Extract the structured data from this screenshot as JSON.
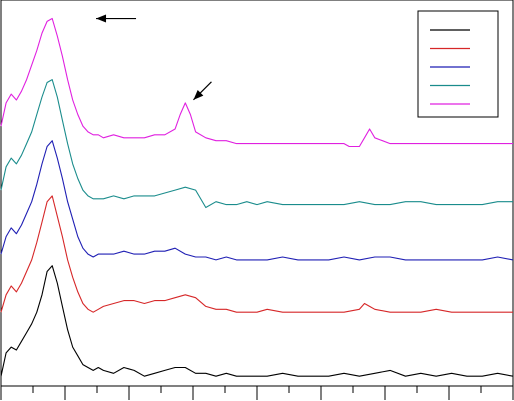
{
  "chart_data": {
    "type": "line",
    "title": "",
    "xlabel": "",
    "ylabel": "",
    "xlim": [
      0,
      100
    ],
    "ylim": [
      0,
      130
    ],
    "grid": false,
    "legend": {
      "placement": "top-right",
      "entries": [
        {
          "label": "",
          "color": "#000000"
        },
        {
          "label": "",
          "color": "#d62728"
        },
        {
          "label": "",
          "color": "#1f1fb4"
        },
        {
          "label": "",
          "color": "#1a8c8c"
        },
        {
          "label": "",
          "color": "#e020e0"
        }
      ]
    },
    "series": [
      {
        "color": "#000000",
        "x": [
          0,
          1,
          2,
          3,
          4,
          5,
          6,
          7,
          8,
          9,
          10,
          11,
          12,
          13,
          14,
          15,
          16,
          17,
          18,
          19,
          20,
          22,
          24,
          26,
          28,
          30,
          32,
          34,
          36,
          38,
          40,
          42,
          44,
          46,
          48,
          50,
          52,
          55,
          58,
          61,
          64,
          67,
          70,
          73,
          76,
          79,
          82,
          85,
          88,
          91,
          94,
          97,
          100
        ],
        "y": [
          2,
          10,
          12,
          11,
          14,
          17,
          20,
          24,
          30,
          38,
          40,
          34,
          26,
          18,
          12,
          9,
          6,
          5,
          4,
          5,
          4,
          3,
          5,
          4,
          2,
          3,
          4,
          5,
          5,
          3,
          3,
          2,
          3,
          2,
          2,
          2,
          2,
          3,
          2,
          2,
          2,
          3,
          2,
          3,
          4,
          2,
          3,
          2,
          3,
          2,
          2,
          3,
          2
        ]
      },
      {
        "color": "#d62728",
        "x": [
          0,
          1,
          2,
          3,
          4,
          5,
          6,
          7,
          8,
          9,
          10,
          11,
          12,
          13,
          14,
          15,
          16,
          17,
          18,
          19,
          20,
          22,
          24,
          26,
          28,
          30,
          32,
          34,
          36,
          38,
          40,
          42,
          44,
          46,
          48,
          50,
          52,
          55,
          58,
          61,
          64,
          67,
          70,
          71,
          72,
          73,
          76,
          79,
          82,
          85,
          88,
          91,
          94,
          97,
          100
        ],
        "y": [
          24,
          30,
          33,
          31,
          34,
          38,
          42,
          48,
          55,
          62,
          64,
          57,
          50,
          42,
          36,
          31,
          27,
          25,
          24,
          25,
          26,
          27,
          28,
          28,
          27,
          28,
          28,
          29,
          30,
          29,
          26,
          25,
          25,
          24,
          24,
          24,
          25,
          24,
          24,
          24,
          24,
          24,
          25,
          27,
          26,
          25,
          24,
          24,
          24,
          25,
          24,
          24,
          24,
          24,
          24
        ]
      },
      {
        "color": "#1f1fb4",
        "x": [
          0,
          1,
          2,
          3,
          4,
          5,
          6,
          7,
          8,
          9,
          10,
          11,
          12,
          13,
          14,
          15,
          16,
          17,
          18,
          19,
          20,
          22,
          24,
          26,
          28,
          30,
          32,
          34,
          36,
          38,
          40,
          42,
          44,
          46,
          48,
          50,
          52,
          55,
          58,
          61,
          64,
          67,
          70,
          73,
          76,
          79,
          82,
          85,
          88,
          91,
          94,
          97,
          100
        ],
        "y": [
          44,
          50,
          53,
          51,
          54,
          58,
          62,
          68,
          75,
          81,
          83,
          77,
          70,
          62,
          56,
          50,
          46,
          44,
          43,
          44,
          44,
          44,
          45,
          44,
          44,
          45,
          45,
          46,
          44,
          43,
          43,
          42,
          43,
          42,
          42,
          42,
          42,
          43,
          42,
          42,
          42,
          43,
          42,
          43,
          43,
          42,
          42,
          42,
          42,
          42,
          42,
          43,
          42
        ]
      },
      {
        "color": "#1a8c8c",
        "x": [
          0,
          1,
          2,
          3,
          4,
          5,
          6,
          7,
          8,
          9,
          10,
          11,
          12,
          13,
          14,
          15,
          16,
          17,
          18,
          19,
          20,
          22,
          24,
          26,
          28,
          30,
          32,
          34,
          36,
          38,
          40,
          42,
          44,
          46,
          48,
          50,
          52,
          55,
          58,
          61,
          64,
          67,
          70,
          73,
          76,
          79,
          82,
          85,
          88,
          91,
          94,
          97,
          100
        ],
        "y": [
          66,
          74,
          77,
          75,
          78,
          82,
          86,
          92,
          98,
          103,
          104,
          98,
          90,
          82,
          75,
          70,
          66,
          64,
          63,
          63,
          63,
          64,
          63,
          64,
          64,
          64,
          65,
          66,
          67,
          66,
          60,
          62,
          61,
          61,
          62,
          61,
          62,
          61,
          61,
          61,
          61,
          61,
          62,
          61,
          61,
          62,
          62,
          61,
          61,
          61,
          61,
          62,
          62
        ]
      },
      {
        "color": "#e020e0",
        "x": [
          0,
          1,
          2,
          3,
          4,
          5,
          6,
          7,
          8,
          9,
          10,
          11,
          12,
          13,
          14,
          15,
          16,
          17,
          18,
          19,
          20,
          22,
          24,
          26,
          28,
          30,
          32,
          34,
          35,
          36,
          37,
          38,
          40,
          42,
          44,
          46,
          48,
          50,
          52,
          55,
          58,
          61,
          64,
          67,
          68,
          70,
          71,
          72,
          73,
          76,
          79,
          82,
          85,
          88,
          91,
          94,
          97,
          100
        ],
        "y": [
          88,
          96,
          99,
          97,
          100,
          104,
          109,
          114,
          120,
          124,
          125,
          119,
          112,
          104,
          97,
          92,
          88,
          86,
          85,
          85,
          84,
          85,
          84,
          84,
          84,
          85,
          85,
          87,
          92,
          96,
          92,
          86,
          84,
          83,
          83,
          82,
          82,
          82,
          82,
          82,
          82,
          82,
          82,
          82,
          81,
          81,
          84,
          87,
          84,
          82,
          82,
          82,
          82,
          82,
          82,
          82,
          82,
          82
        ]
      }
    ],
    "annotations": [
      {
        "type": "arrow",
        "x": 17,
        "y": 125,
        "direction": "left"
      },
      {
        "type": "arrow",
        "x": 37,
        "y": 96,
        "direction": "down-left"
      }
    ]
  }
}
